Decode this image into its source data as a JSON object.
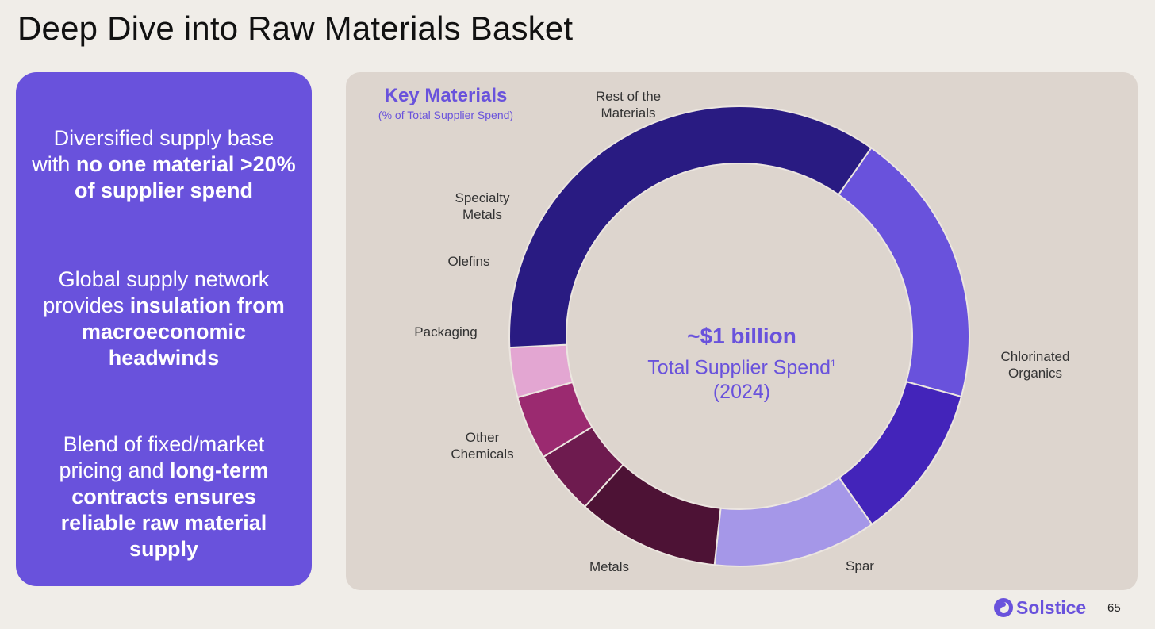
{
  "slide": {
    "title": "Deep Dive into Raw Materials Basket",
    "page_number": "65",
    "logo_text": "Solstice"
  },
  "left_panel": {
    "bullets": [
      {
        "plain": "Diversified supply base with ",
        "bold": "no one material >20% of supplier spend"
      },
      {
        "plain": "Global supply network provides ",
        "bold": "insulation from macroeconomic headwinds"
      },
      {
        "plain": "Blend of fixed/market pricing and ",
        "bold": "long-term contracts ensures reliable raw material supply"
      }
    ]
  },
  "chart_data": {
    "type": "pie",
    "variant": "donut",
    "title": "Key Materials",
    "subtitle": "(% of Total Supplier Spend)",
    "center": {
      "amount": "~$1 billion",
      "label": "Total Supplier Spend",
      "footnote": "1",
      "year": "(2024)"
    },
    "unit": "% of total supplier spend (estimated)",
    "start_angle_deg": 35,
    "direction": "clockwise",
    "slices": [
      {
        "label": "Chlorinated\nOrganics",
        "value": 19.5,
        "color": "#6952dc"
      },
      {
        "label": "Spar",
        "value": 11.0,
        "color": "#4324ba"
      },
      {
        "label": "Metals",
        "value": 11.5,
        "color": "#a597e8"
      },
      {
        "label": "Other\nChemicals",
        "value": 10.0,
        "color": "#4d1235"
      },
      {
        "label": "Packaging",
        "value": 4.5,
        "color": "#6e1b4f"
      },
      {
        "label": "Olefins",
        "value": 4.5,
        "color": "#9b2a70"
      },
      {
        "label": "Specialty\nMetals",
        "value": 3.5,
        "color": "#e3a6d2"
      },
      {
        "label": "Rest of the\nMaterials",
        "value": 35.5,
        "color": "#291b82"
      }
    ]
  }
}
